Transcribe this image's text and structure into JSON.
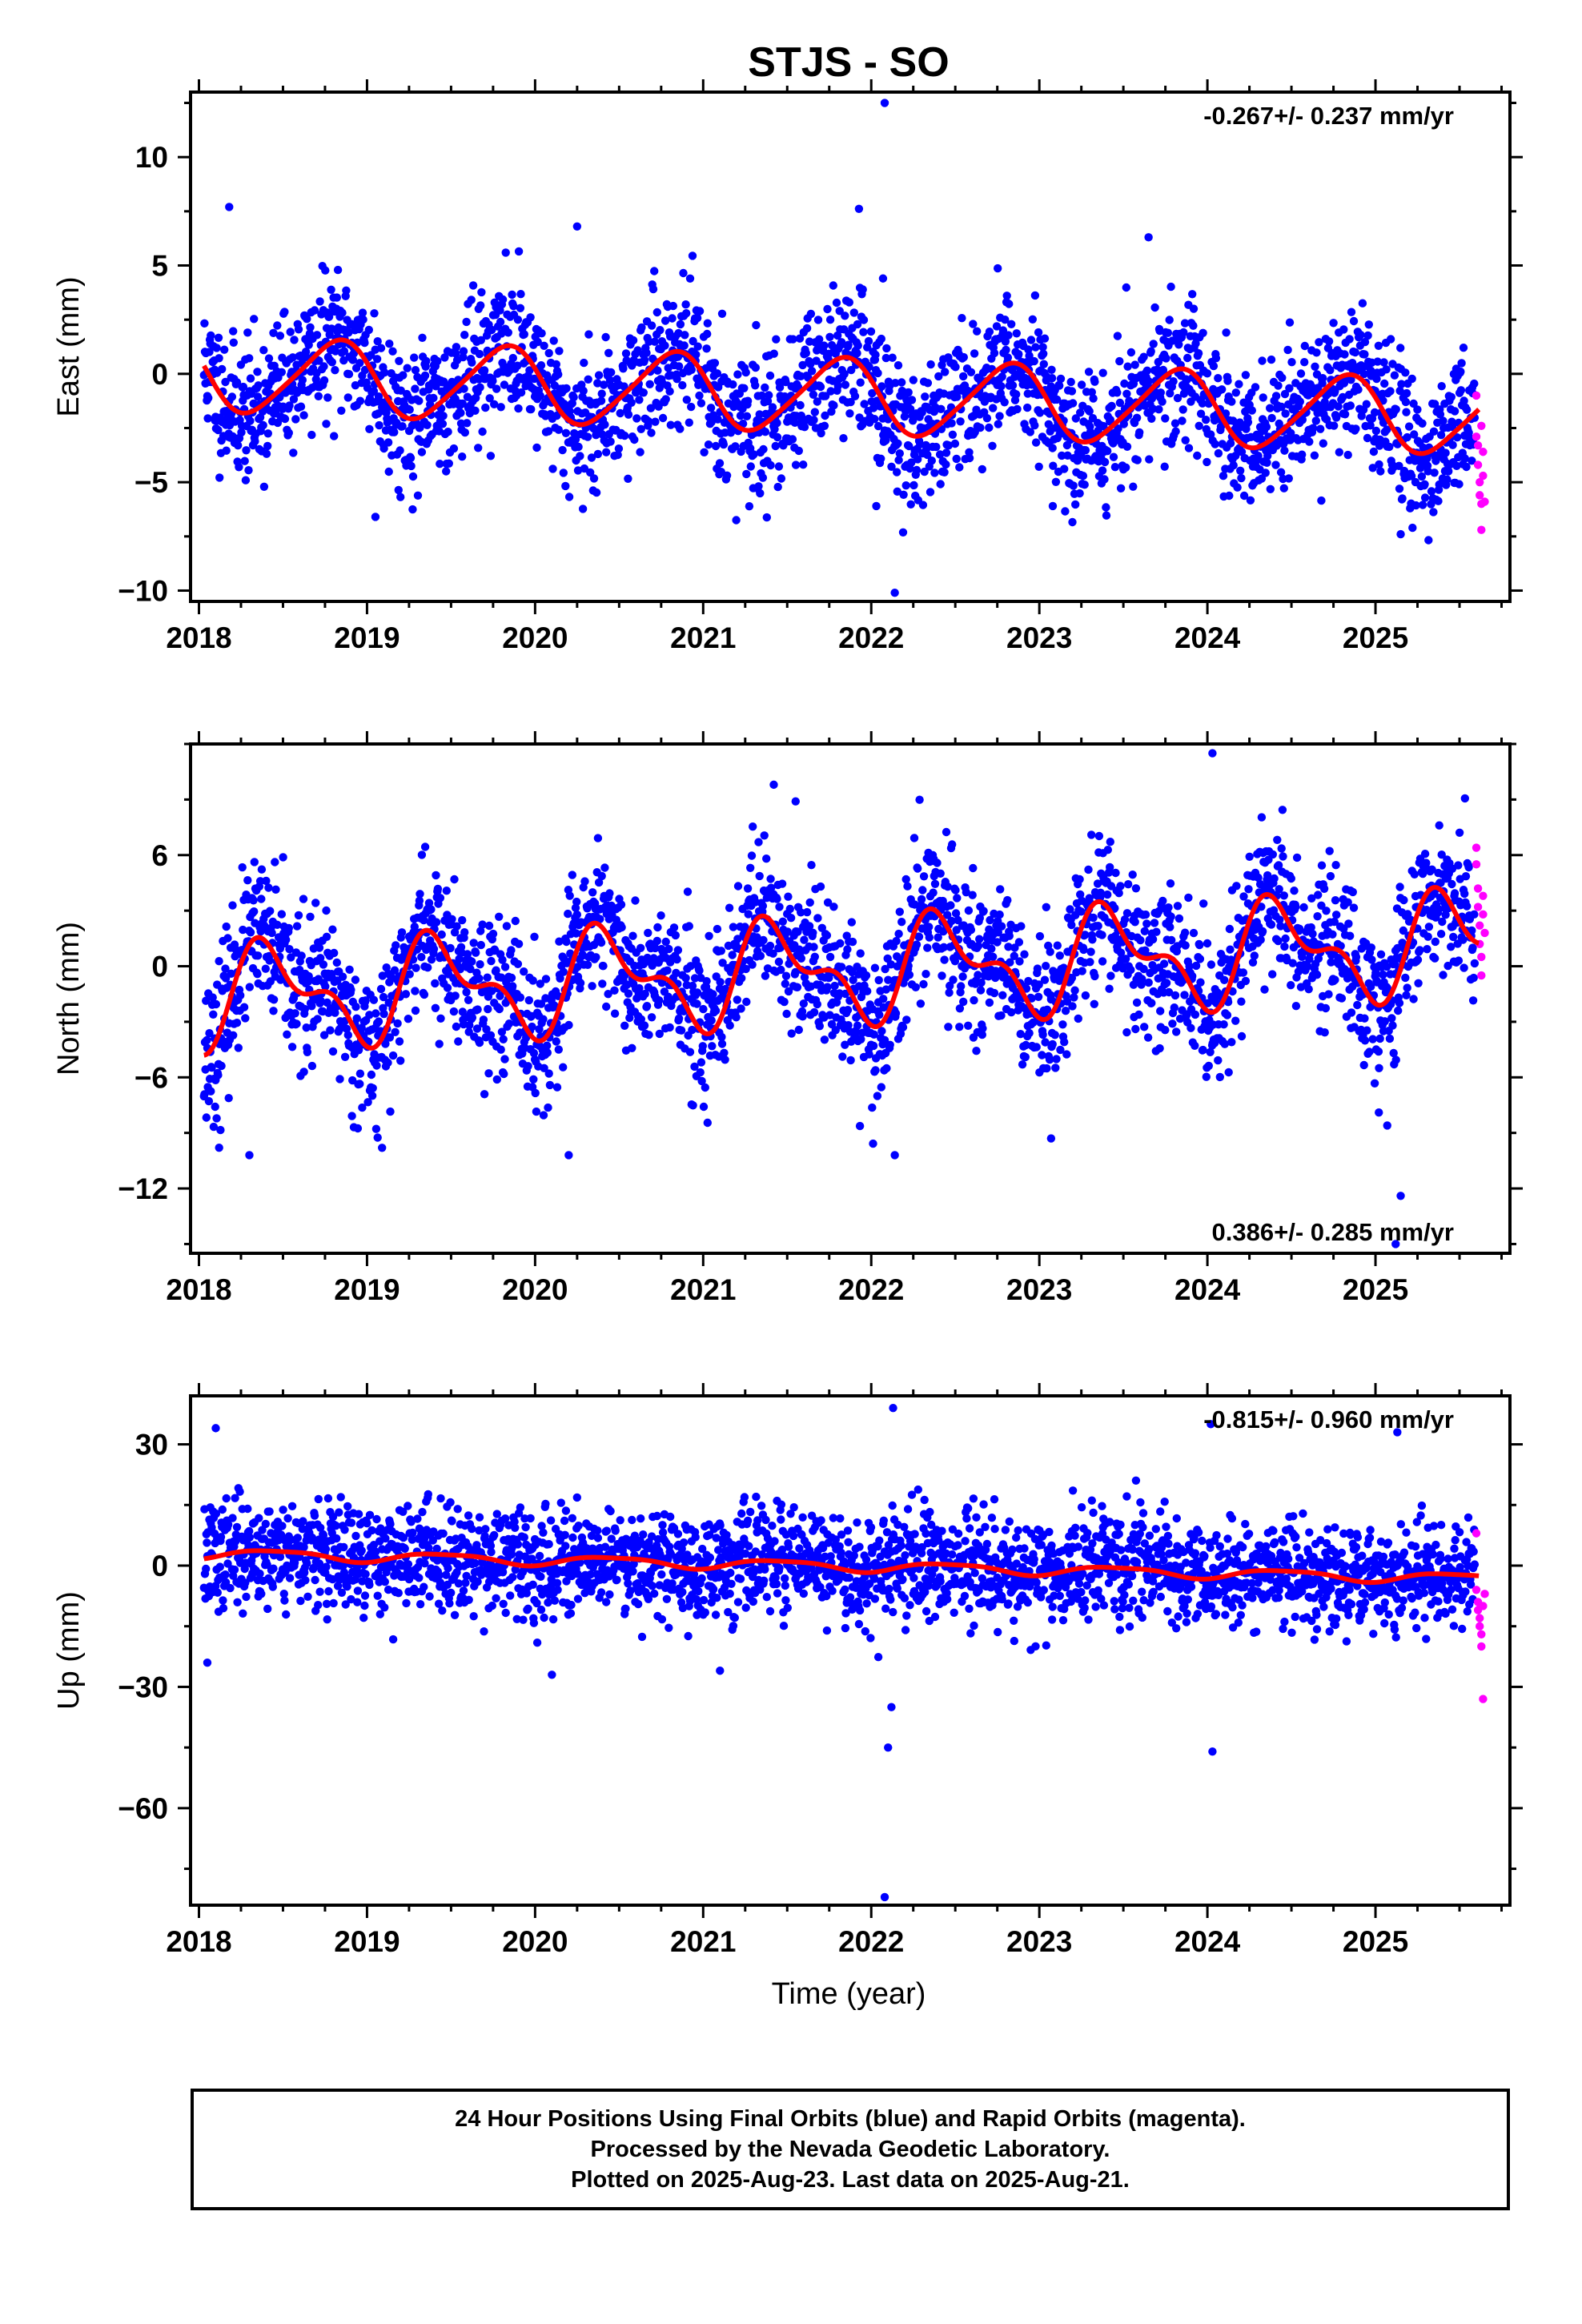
{
  "title": "STJS - SO",
  "xlabel": "Time (year)",
  "colors": {
    "final": "#0000ff",
    "rapid": "#ff00ff",
    "model": "#ff0000",
    "axis": "#000000"
  },
  "caption": [
    "24 Hour Positions Using Final Orbits (blue) and Rapid Orbits (magenta).",
    "Processed by the Nevada Geodetic Laboratory.",
    "Plotted on 2025-Aug-23. Last data on 2025-Aug-21."
  ],
  "chart_data": [
    {
      "type": "scatter",
      "ylabel": "East (mm)",
      "rate": "-0.267+/- 0.237 mm/yr",
      "rate_pos": "top-right",
      "xlim": [
        2017.95,
        2025.8
      ],
      "ylim": [
        -10.5,
        13
      ],
      "yticks": [
        10,
        5,
        0,
        -5,
        -10
      ],
      "xticks": [
        2018,
        2019,
        2020,
        2021,
        2022,
        2023,
        2024,
        2025
      ],
      "model": {
        "mean": 0.0,
        "trend": -0.267,
        "amp1": 1.7,
        "phase1": -0.44,
        "amp2": 0.25,
        "phase2": 0.3
      },
      "scatter": {
        "sigma": 1.55,
        "n": 2620,
        "seed": 11
      },
      "rapid": [
        [
          2025.6,
          -2.9
        ],
        [
          2025.61,
          -3.3
        ],
        [
          2025.61,
          -4.2
        ],
        [
          2025.62,
          -5.0
        ],
        [
          2025.62,
          -5.6
        ],
        [
          2025.63,
          -6.0
        ],
        [
          2025.63,
          -7.2
        ],
        [
          2025.64,
          -3.6
        ],
        [
          2025.64,
          -4.7
        ],
        [
          2025.65,
          -5.9
        ],
        [
          2025.6,
          -1.0
        ],
        [
          2025.63,
          -2.4
        ]
      ],
      "outliers": [
        [
          2022.08,
          12.5
        ],
        [
          2022.14,
          -10.1
        ],
        [
          2022.07,
          4.4
        ],
        [
          2025.15,
          -7.4
        ],
        [
          2019.05,
          -6.6
        ],
        [
          2022.03,
          -6.1
        ],
        [
          2023.08,
          -6.1
        ],
        [
          2023.65,
          6.3
        ],
        [
          2020.25,
          6.8
        ],
        [
          2018.18,
          7.7
        ]
      ]
    },
    {
      "type": "scatter",
      "ylabel": "North (mm)",
      "rate": "0.386+/- 0.285 mm/yr",
      "rate_pos": "bottom-right",
      "xlim": [
        2017.95,
        2025.8
      ],
      "ylim": [
        -15.5,
        12
      ],
      "yticks": [
        6,
        0,
        -6,
        -12
      ],
      "xticks": [
        2018,
        2019,
        2020,
        2021,
        2022,
        2023,
        2024,
        2025
      ],
      "model": {
        "mean": -1.7,
        "trend": 0.386,
        "amp1": 2.3,
        "phase1": 0.19,
        "amp2": 1.3,
        "phase2": 0.19
      },
      "scatter": {
        "sigma": 2.0,
        "n": 2620,
        "seed": 23
      },
      "rapid": [
        [
          2025.6,
          6.4
        ],
        [
          2025.6,
          5.5
        ],
        [
          2025.61,
          4.2
        ],
        [
          2025.61,
          3.2
        ],
        [
          2025.62,
          2.2
        ],
        [
          2025.62,
          1.2
        ],
        [
          2025.63,
          0.5
        ],
        [
          2025.63,
          -0.5
        ],
        [
          2025.64,
          2.8
        ],
        [
          2025.64,
          3.8
        ],
        [
          2025.65,
          1.8
        ]
      ],
      "outliers": [
        [
          2024.03,
          11.5
        ],
        [
          2021.55,
          8.9
        ],
        [
          2021.42,
          9.8
        ],
        [
          2025.07,
          -8.6
        ],
        [
          2025.02,
          -7.9
        ],
        [
          2025.15,
          -12.4
        ],
        [
          2025.12,
          -15.0
        ],
        [
          2022.14,
          -10.2
        ],
        [
          2020.2,
          -10.2
        ],
        [
          2023.07,
          -9.3
        ],
        [
          2018.3,
          -10.2
        ],
        [
          2018.12,
          -9.8
        ]
      ]
    },
    {
      "type": "scatter",
      "ylabel": "Up (mm)",
      "rate": "-0.815+/- 0.960 mm/yr",
      "rate_pos": "top-right",
      "xlim": [
        2017.95,
        2025.8
      ],
      "ylim": [
        -84,
        42
      ],
      "yticks": [
        30,
        0,
        -30,
        -60
      ],
      "xticks": [
        2018,
        2019,
        2020,
        2021,
        2022,
        2023,
        2024,
        2025
      ],
      "model": {
        "mean": 3.0,
        "trend": -0.815,
        "amp1": 1.2,
        "phase1": 0.2,
        "amp2": 0.3,
        "phase2": 0.1
      },
      "scatter": {
        "sigma": 6.5,
        "n": 2620,
        "seed": 37
      },
      "rapid": [
        [
          2025.6,
          8
        ],
        [
          2025.6,
          -6
        ],
        [
          2025.61,
          -9
        ],
        [
          2025.61,
          -11
        ],
        [
          2025.62,
          -13
        ],
        [
          2025.62,
          -15
        ],
        [
          2025.63,
          -17
        ],
        [
          2025.63,
          -20
        ],
        [
          2025.64,
          -33
        ],
        [
          2025.64,
          -10
        ],
        [
          2025.65,
          -7
        ]
      ],
      "outliers": [
        [
          2022.13,
          39
        ],
        [
          2022.08,
          -82
        ],
        [
          2022.1,
          -45
        ],
        [
          2022.12,
          -35
        ],
        [
          2018.1,
          34
        ],
        [
          2024.02,
          35
        ],
        [
          2025.13,
          33
        ],
        [
          2024.03,
          -46
        ],
        [
          2018.05,
          -24
        ],
        [
          2020.1,
          -27
        ],
        [
          2021.1,
          -26
        ]
      ]
    }
  ]
}
